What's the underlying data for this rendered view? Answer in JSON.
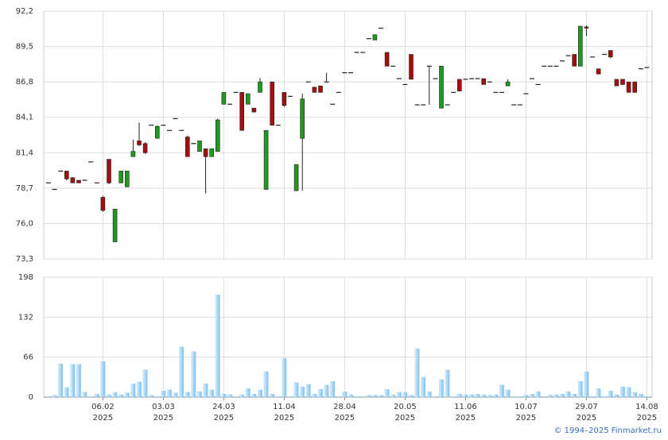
{
  "chart_data": {
    "type": "candlestick",
    "categories": [
      null,
      null,
      null,
      null,
      null,
      null,
      null,
      null,
      null,
      "06.02\n2025",
      null,
      null,
      null,
      null,
      null,
      null,
      null,
      null,
      null,
      "03.03\n2025",
      null,
      null,
      null,
      null,
      null,
      null,
      null,
      null,
      null,
      "24.03\n2025",
      null,
      null,
      null,
      null,
      null,
      null,
      null,
      null,
      null,
      "11.04\n2025",
      null,
      null,
      null,
      null,
      null,
      null,
      null,
      null,
      null,
      "28.04\n2025",
      null,
      null,
      null,
      null,
      null,
      null,
      null,
      null,
      null,
      "20.05\n2025",
      null,
      null,
      null,
      null,
      null,
      null,
      null,
      null,
      null,
      "11.06\n2025",
      null,
      null,
      null,
      null,
      null,
      null,
      null,
      null,
      null,
      "10.07\n2025",
      null,
      null,
      null,
      null,
      null,
      null,
      null,
      null,
      null,
      "29.07\n2025",
      null,
      null,
      null,
      null,
      null,
      null,
      null,
      null,
      null,
      "14.08\n2025"
    ],
    "open": [
      79.1,
      78.6,
      80.0,
      80.0,
      79.5,
      79.3,
      79.3,
      80.7,
      79.1,
      78.0,
      80.9,
      74.6,
      79.1,
      78.8,
      81.1,
      82.3,
      82.1,
      83.5,
      82.5,
      83.5,
      83.1,
      84.0,
      83.1,
      82.6,
      82.1,
      81.5,
      81.7,
      81.1,
      81.5,
      85.1,
      85.1,
      86.0,
      86.0,
      85.1,
      84.8,
      86.0,
      78.6,
      86.8,
      83.5,
      86.0,
      85.7,
      78.5,
      82.5,
      86.8,
      86.4,
      86.5,
      86.8,
      85.1,
      86.0,
      87.5,
      87.5,
      89.05,
      89.05,
      90.1,
      90.0,
      90.9,
      89.05,
      88.0,
      87.05,
      86.6,
      88.9,
      85.05,
      85.05,
      88.0,
      87.05,
      84.8,
      85.05,
      86.0,
      87.0,
      87.0,
      87.05,
      87.05,
      87.05,
      86.8,
      86.0,
      86.0,
      86.5,
      85.05,
      85.05,
      85.9,
      87.05,
      86.6,
      88.0,
      88.0,
      88.0,
      88.4,
      88.8,
      88.9,
      88.0,
      91.0,
      88.7,
      87.8,
      88.9,
      89.2,
      87.0,
      87.0,
      86.8,
      86.8,
      87.8,
      87.9
    ],
    "high": [
      79.1,
      78.6,
      80.0,
      80.0,
      79.5,
      79.3,
      79.3,
      80.7,
      79.1,
      78.1,
      80.9,
      77.1,
      80.0,
      80.0,
      82.4,
      83.7,
      82.2,
      83.5,
      83.5,
      83.5,
      83.1,
      84.0,
      83.1,
      82.7,
      82.1,
      82.3,
      81.7,
      81.7,
      84.0,
      86.0,
      85.1,
      86.0,
      86.0,
      85.9,
      84.8,
      87.1,
      83.1,
      86.8,
      83.5,
      86.0,
      85.7,
      80.5,
      85.9,
      86.8,
      86.4,
      86.5,
      87.5,
      85.1,
      86.0,
      87.5,
      87.5,
      89.05,
      89.05,
      90.1,
      90.4,
      90.9,
      89.05,
      88.0,
      87.05,
      86.6,
      88.9,
      85.05,
      85.05,
      88.0,
      87.05,
      88.0,
      85.05,
      86.0,
      87.0,
      87.0,
      87.05,
      87.05,
      87.05,
      86.8,
      86.0,
      86.0,
      87.0,
      85.05,
      85.05,
      85.9,
      87.05,
      86.6,
      88.0,
      88.0,
      88.0,
      88.4,
      88.8,
      88.9,
      91.05,
      91.1,
      88.7,
      87.8,
      88.9,
      89.2,
      87.0,
      87.0,
      86.8,
      86.8,
      87.8,
      87.9
    ],
    "low": [
      79.1,
      78.6,
      80.0,
      79.3,
      79.1,
      79.1,
      79.3,
      80.7,
      79.1,
      76.9,
      79.0,
      74.6,
      79.1,
      78.8,
      81.1,
      81.9,
      81.3,
      83.5,
      82.5,
      83.5,
      83.1,
      84.0,
      83.1,
      81.1,
      82.1,
      81.5,
      78.3,
      81.1,
      81.5,
      85.1,
      85.1,
      86.0,
      83.1,
      85.1,
      84.5,
      86.0,
      78.6,
      83.5,
      83.5,
      84.9,
      85.7,
      78.5,
      78.5,
      86.8,
      86.0,
      86.0,
      86.8,
      85.1,
      86.0,
      87.5,
      87.5,
      89.05,
      89.05,
      90.1,
      90.0,
      90.9,
      88.0,
      88.0,
      87.05,
      86.6,
      87.0,
      85.05,
      85.05,
      85.05,
      87.05,
      84.8,
      85.05,
      86.0,
      86.1,
      87.0,
      87.05,
      87.05,
      86.6,
      86.8,
      86.0,
      86.0,
      86.5,
      85.05,
      85.05,
      85.9,
      87.05,
      86.6,
      88.0,
      88.0,
      88.0,
      88.4,
      88.8,
      88.0,
      88.0,
      90.3,
      88.7,
      87.4,
      88.9,
      88.6,
      86.5,
      86.6,
      86.0,
      86.0,
      87.8,
      87.9
    ],
    "close": [
      79.1,
      78.6,
      80.0,
      79.4,
      79.1,
      79.1,
      79.3,
      80.7,
      79.1,
      77.0,
      79.1,
      77.1,
      80.0,
      80.0,
      81.5,
      82.0,
      81.4,
      83.5,
      83.4,
      83.5,
      83.1,
      84.0,
      83.1,
      81.1,
      82.1,
      82.3,
      81.1,
      81.7,
      83.9,
      86.0,
      85.1,
      86.0,
      83.1,
      85.9,
      84.5,
      86.8,
      83.1,
      83.5,
      83.5,
      85.0,
      85.7,
      80.5,
      85.5,
      86.8,
      86.0,
      86.0,
      86.8,
      85.1,
      86.0,
      87.5,
      87.5,
      89.05,
      89.05,
      90.1,
      90.4,
      90.9,
      88.0,
      88.0,
      87.05,
      86.6,
      87.0,
      85.05,
      85.05,
      88.0,
      87.05,
      88.0,
      85.05,
      86.0,
      86.1,
      87.0,
      87.05,
      87.05,
      86.6,
      86.8,
      86.0,
      86.0,
      86.8,
      85.05,
      85.05,
      85.9,
      87.05,
      86.6,
      88.0,
      88.0,
      88.0,
      88.4,
      88.8,
      88.0,
      91.05,
      90.9,
      88.7,
      87.4,
      88.9,
      88.7,
      86.5,
      86.6,
      86.0,
      86.0,
      87.8,
      87.9
    ],
    "up_color": "#1f9a1f",
    "down_color": "#a30e0e",
    "ylim": [
      73.3,
      92.2
    ],
    "yticks": [
      {
        "value": 73.3,
        "label": "73,3"
      },
      {
        "value": 76.0,
        "label": "76,0"
      },
      {
        "value": 78.7,
        "label": "78,7"
      },
      {
        "value": 81.4,
        "label": "81,4"
      },
      {
        "value": 84.1,
        "label": "84,1"
      },
      {
        "value": 86.8,
        "label": "86,8"
      },
      {
        "value": 89.5,
        "label": "89,5"
      },
      {
        "value": 92.2,
        "label": "92,2"
      }
    ],
    "grid": true,
    "volume": {
      "values": [
        1,
        3,
        55,
        16,
        54,
        54,
        8,
        1,
        5,
        59,
        4,
        8,
        4,
        7,
        22,
        25,
        45,
        3,
        1,
        10,
        12,
        7,
        83,
        8,
        75,
        9,
        22,
        12,
        169,
        5,
        4,
        1,
        4,
        14,
        5,
        12,
        42,
        5,
        1,
        64,
        1,
        24,
        17,
        21,
        5,
        13,
        20,
        26,
        1,
        9,
        4,
        1,
        1,
        3,
        3,
        3,
        13,
        4,
        8,
        8,
        3,
        80,
        33,
        9,
        1,
        29,
        45,
        1,
        5,
        4,
        4,
        5,
        4,
        3,
        4,
        20,
        12,
        1,
        1,
        3,
        5,
        9,
        1,
        3,
        4,
        5,
        9,
        5,
        26,
        42,
        1,
        14,
        1,
        10,
        4,
        17,
        16,
        8,
        5,
        1
      ],
      "color": "#8ccaf2",
      "ylim": [
        0,
        198
      ],
      "yticks": [
        0,
        66,
        132,
        198
      ]
    },
    "source": "© 1994–2025 Finmarket.ru"
  }
}
